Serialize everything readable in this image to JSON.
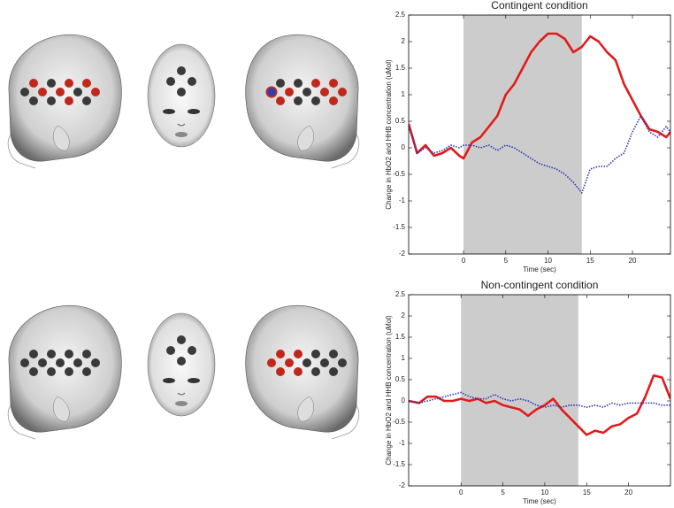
{
  "chart_data": [
    {
      "type": "line",
      "title": "Contingent condition",
      "x_label": "Time (sec)",
      "y_label": "Change in HbO2 and HHB concentration (uMol)",
      "xlim": [
        -6.5,
        24.5
      ],
      "xticks": [
        0,
        5,
        10,
        15,
        20
      ],
      "ylim": [
        -2,
        2.5
      ],
      "yticks": [
        -2,
        -1.5,
        -1,
        -0.5,
        0,
        0.5,
        1,
        1.5,
        2,
        2.5
      ],
      "shaded_interval": [
        0,
        14
      ],
      "shade_color": "#cccccc",
      "x": [
        -6.5,
        -5.5,
        -4.5,
        -3.5,
        -2.5,
        -1.5,
        -0.5,
        0,
        1,
        2,
        3,
        4,
        5,
        6,
        7,
        8,
        9,
        10,
        11,
        12,
        13,
        14,
        15,
        16,
        17,
        18,
        19,
        20,
        21,
        22,
        23,
        24,
        24.5
      ],
      "series": [
        {
          "color": "#e31a1c",
          "style": "solid",
          "values": [
            0.45,
            -0.1,
            0.05,
            -0.15,
            -0.1,
            0,
            -0.15,
            -0.2,
            0.1,
            0.2,
            0.4,
            0.6,
            1.0,
            1.2,
            1.5,
            1.8,
            2.0,
            2.15,
            2.15,
            2.05,
            1.8,
            1.9,
            2.1,
            2.0,
            1.8,
            1.65,
            1.2,
            0.9,
            0.6,
            0.35,
            0.3,
            0.2,
            0.3
          ]
        },
        {
          "color": "#2b35b8",
          "style": "dotted",
          "values": [
            0.4,
            -0.1,
            0,
            -0.1,
            -0.05,
            0.05,
            0,
            0.05,
            0.05,
            0,
            0.05,
            -0.05,
            0.05,
            0,
            -0.1,
            -0.2,
            -0.3,
            -0.35,
            -0.4,
            -0.5,
            -0.65,
            -0.85,
            -0.4,
            -0.35,
            -0.35,
            -0.2,
            -0.1,
            0.3,
            0.6,
            0.3,
            0.2,
            0.4,
            0.3
          ]
        }
      ]
    },
    {
      "type": "line",
      "title": "Non-contingent condition",
      "x_label": "Time (sec)",
      "y_label": "Change in HbO2 and HHB concentration (uMol)",
      "xlim": [
        -6.25,
        25
      ],
      "xticks": [
        0,
        5,
        10,
        15,
        20
      ],
      "ylim": [
        -2,
        2.5
      ],
      "yticks": [
        -2,
        -1.5,
        -1,
        -0.5,
        0,
        0.5,
        1,
        1.5,
        2,
        2.5
      ],
      "shaded_interval": [
        0,
        14
      ],
      "shade_color": "#cccccc",
      "x": [
        -6.25,
        -5,
        -4,
        -3,
        -2,
        -1,
        0,
        1,
        2,
        3,
        4,
        5,
        6,
        7,
        8,
        9,
        10,
        11,
        12,
        13,
        14,
        15,
        16,
        17,
        18,
        19,
        20,
        21,
        22,
        23,
        24,
        25
      ],
      "series": [
        {
          "color": "#e31a1c",
          "style": "solid",
          "values": [
            0,
            -0.05,
            0.1,
            0.1,
            0,
            0,
            0.05,
            0,
            0.05,
            -0.05,
            0,
            -0.1,
            -0.15,
            -0.2,
            -0.35,
            -0.2,
            -0.1,
            0.05,
            -0.2,
            -0.4,
            -0.6,
            -0.8,
            -0.7,
            -0.75,
            -0.6,
            -0.55,
            -0.4,
            -0.3,
            0.1,
            0.6,
            0.55,
            0.05
          ]
        },
        {
          "color": "#2b35b8",
          "style": "dotted",
          "values": [
            0,
            -0.05,
            0,
            0.05,
            0.1,
            0.15,
            0.2,
            0.1,
            0.05,
            0.05,
            0.15,
            0.05,
            0,
            0.05,
            0,
            -0.1,
            -0.15,
            -0.1,
            -0.15,
            -0.1,
            -0.1,
            -0.15,
            -0.1,
            -0.15,
            -0.05,
            -0.1,
            -0.05,
            -0.05,
            -0.05,
            -0.05,
            -0.1,
            -0.1
          ]
        }
      ]
    }
  ]
}
